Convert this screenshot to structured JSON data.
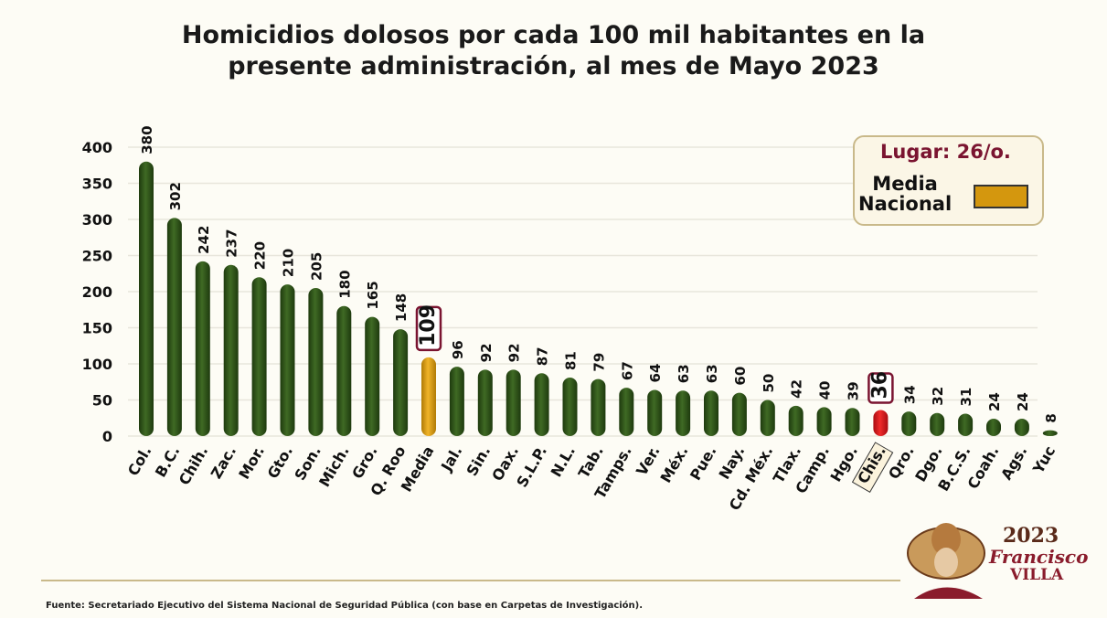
{
  "chart_data": {
    "type": "bar",
    "title": "Homicidios dolosos por cada 100 mil habitantes en la presente administración, al mes de Mayo 2023",
    "title_lines": [
      "Homicidios dolosos por cada 100 mil habitantes en la",
      "presente administración, al mes de Mayo 2023"
    ],
    "categories": [
      "Col.",
      "B.C.",
      "Chih.",
      "Zac.",
      "Mor.",
      "Gto.",
      "Son.",
      "Mich.",
      "Gro.",
      "Q. Roo",
      "Media",
      "Jal.",
      "Sin.",
      "Oax.",
      "S.L.P.",
      "N.L.",
      "Tab.",
      "Tamps.",
      "Ver.",
      "Méx.",
      "Pue.",
      "Nay.",
      "Cd. Méx.",
      "Tlax.",
      "Camp.",
      "Hgo.",
      "Chis.",
      "Qro.",
      "Dgo.",
      "B.C.S.",
      "Coah.",
      "Ags.",
      "Yuc"
    ],
    "values": [
      380,
      302,
      242,
      237,
      220,
      210,
      205,
      180,
      165,
      148,
      109,
      96,
      92,
      92,
      87,
      81,
      79,
      67,
      64,
      63,
      63,
      60,
      50,
      42,
      40,
      39,
      36,
      34,
      32,
      31,
      24,
      24,
      8
    ],
    "highlight": {
      "Media": "#d4970e",
      "Chis.": "#d8141a"
    },
    "bar_color": "#2f5418",
    "ylim": [
      0,
      400
    ],
    "yticks": [
      0,
      50,
      100,
      150,
      200,
      250,
      300,
      350,
      400
    ],
    "grid": true,
    "xlabel": "",
    "ylabel": "",
    "legend": {
      "placement": "top-right",
      "rank": "Lugar: 26/o.",
      "entry": "Media Nacional",
      "entry_lines": [
        "Media",
        "Nacional"
      ],
      "color": "#d4970e"
    }
  },
  "footer": {
    "source": "Fuente:  Secretariado Ejecutivo del Sistema Nacional de Seguridad Pública (con base en Carpetas de Investigación)."
  },
  "logo": {
    "year": "2023",
    "name": "Francisco",
    "surname": "VILLA",
    "text": "AÑO DE Francisco VILLA EL REVOLUCIONARIO DEL PUEBLO"
  }
}
